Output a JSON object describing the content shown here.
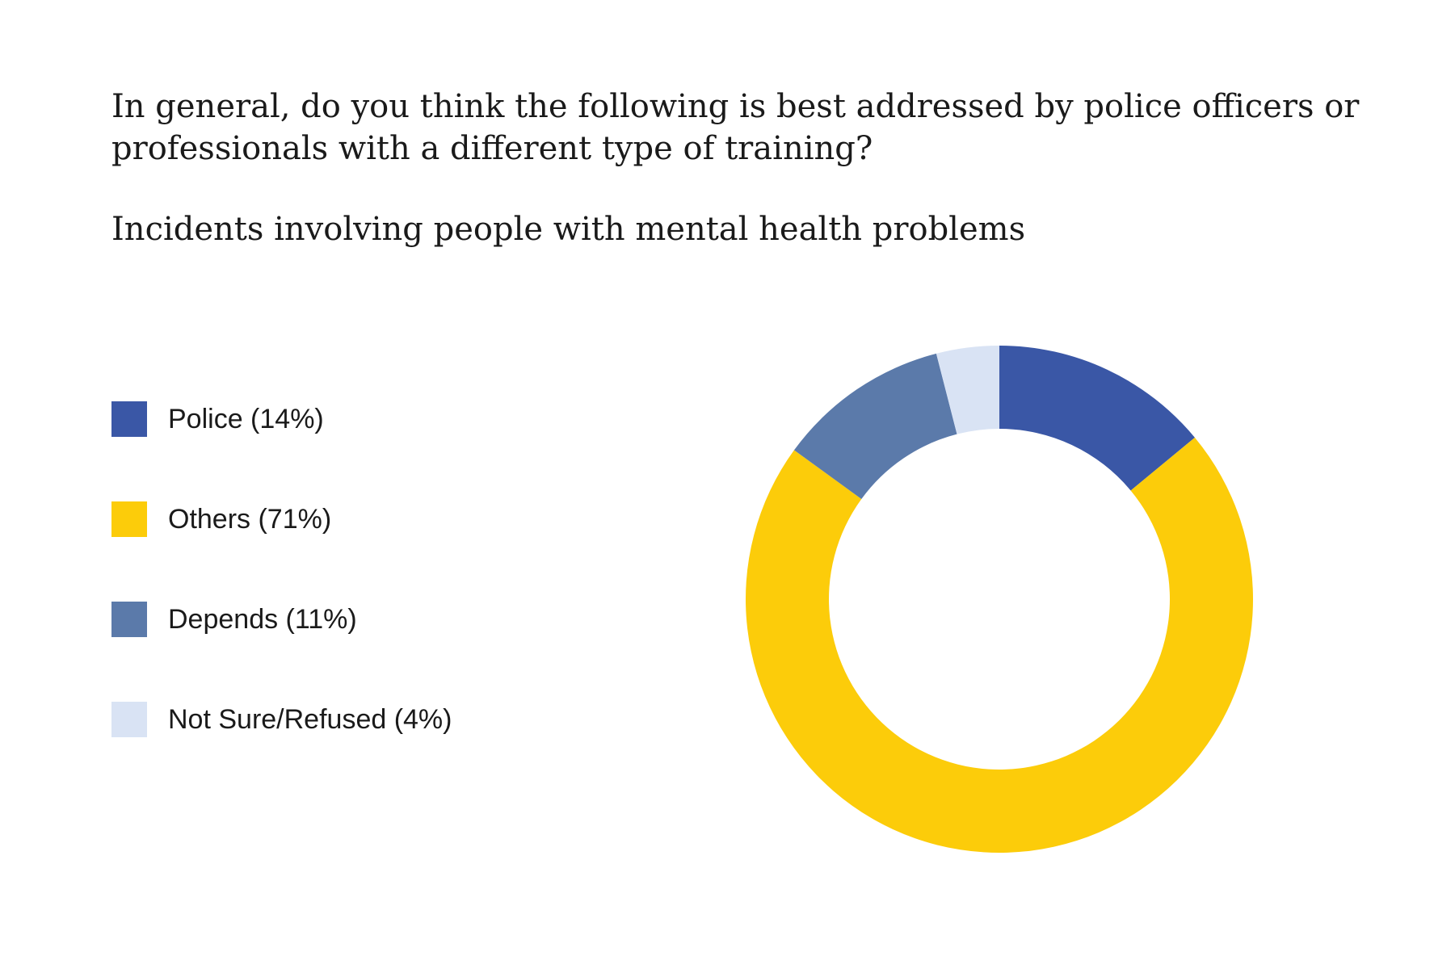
{
  "chart_data": {
    "type": "pie",
    "variant": "donut",
    "title": "In general, do you think the following is best addressed by police officers or professionals with a different type of training?",
    "subtitle": "Incidents involving people with mental health problems",
    "legend_position": "left",
    "slices": [
      {
        "label": "Police",
        "value": 14,
        "legend_text": "Police (14%)",
        "color": "#3a57a6"
      },
      {
        "label": "Others",
        "value": 71,
        "legend_text": "Others (71%)",
        "color": "#fccc0a"
      },
      {
        "label": "Depends",
        "value": 11,
        "legend_text": "Depends (11%)",
        "color": "#5b7aaa"
      },
      {
        "label": "Not Sure/Refused",
        "value": 4,
        "legend_text": "Not Sure/Refused (4%)",
        "color": "#d9e3f4"
      }
    ]
  }
}
